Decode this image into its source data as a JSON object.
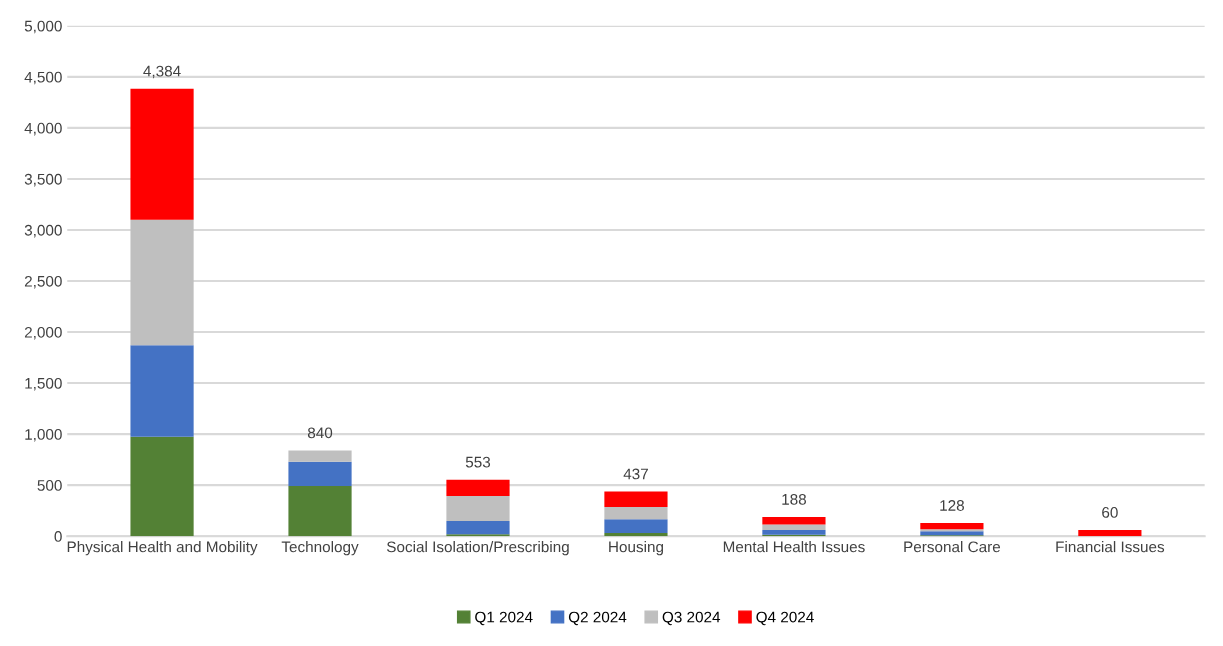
{
  "chart_data": {
    "type": "bar",
    "stacked": true,
    "categories": [
      "Physical Health and Mobility",
      "Technology",
      "Social Isolation/Prescribing",
      "Housing",
      "Mental Health Issues",
      "Personal Care",
      "Financial Issues"
    ],
    "series": [
      {
        "name": "Q1 2024",
        "color": "#538135",
        "values": [
          974,
          492,
          20,
          30,
          15,
          8,
          null
        ]
      },
      {
        "name": "Q2 2024",
        "color": "#4472c4",
        "values": [
          896,
          236,
          128,
          137,
          45,
          40,
          null
        ]
      },
      {
        "name": "Q3 2024",
        "color": "#bfbfbf",
        "values": [
          1230,
          112,
          246,
          118,
          55,
          20,
          null
        ]
      },
      {
        "name": "Q4 2024",
        "color": "#ff0000",
        "values": [
          1284,
          0,
          159,
          152,
          73,
          60,
          60
        ]
      }
    ],
    "totals": [
      "4,384",
      "840",
      "553",
      "437",
      "188",
      "128",
      "60"
    ],
    "ylim": [
      0,
      5000
    ],
    "yticks": [
      {
        "value": 0,
        "label": "0"
      },
      {
        "value": 500,
        "label": "500"
      },
      {
        "value": 1000,
        "label": "1,000"
      },
      {
        "value": 1500,
        "label": "1,500"
      },
      {
        "value": 2000,
        "label": "2,000"
      },
      {
        "value": 2500,
        "label": "2,500"
      },
      {
        "value": 3000,
        "label": "3,000"
      },
      {
        "value": 3500,
        "label": "3,500"
      },
      {
        "value": 4000,
        "label": "4,000"
      },
      {
        "value": 4500,
        "label": "4,500"
      },
      {
        "value": 5000,
        "label": "5,000"
      }
    ],
    "grid": "y",
    "legend": "bottom"
  }
}
